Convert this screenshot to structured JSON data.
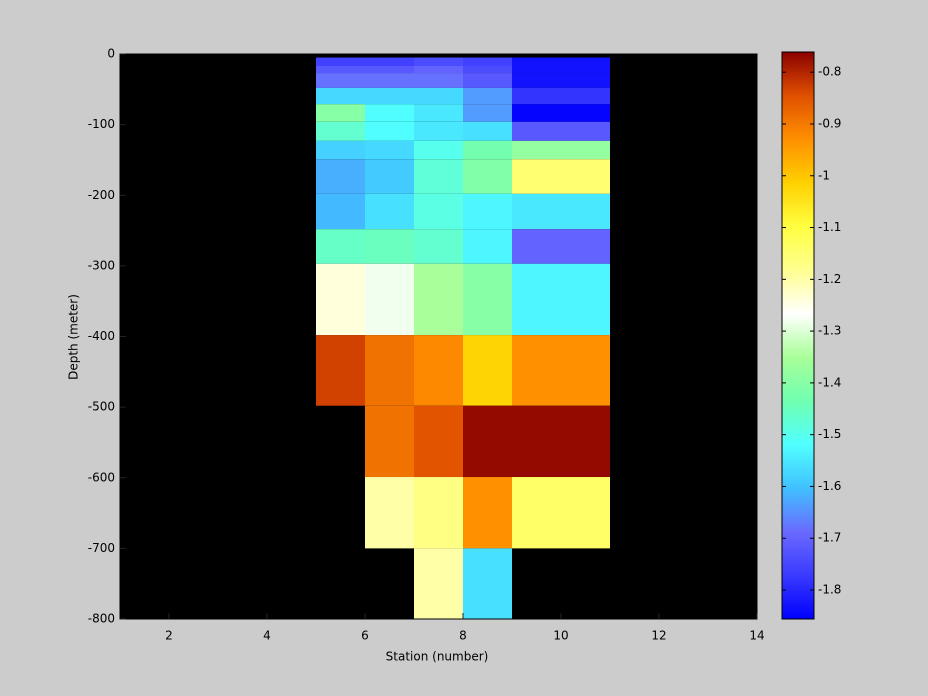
{
  "chart_data": {
    "type": "heatmap",
    "xlabel": "Station (number)",
    "ylabel": "Depth (meter)",
    "x_edges": [
      5,
      6,
      7,
      8,
      9,
      11
    ],
    "y_edges": [
      -5,
      -17,
      -27,
      -48,
      -71,
      -96,
      -123,
      -149,
      -198,
      -248,
      -297,
      -398,
      -498,
      -599,
      -700,
      -800
    ],
    "values": [
      [
        -1.76,
        -1.76,
        -1.74,
        -1.76,
        -1.83
      ],
      [
        -1.72,
        -1.72,
        -1.7,
        -1.74,
        -1.83
      ],
      [
        -1.68,
        -1.68,
        -1.68,
        -1.72,
        -1.83
      ],
      [
        -1.57,
        -1.57,
        -1.57,
        -1.64,
        -1.78
      ],
      [
        -1.4,
        -1.52,
        -1.55,
        -1.64,
        -1.85
      ],
      [
        -1.47,
        -1.52,
        -1.55,
        -1.56,
        -1.72
      ],
      [
        -1.58,
        -1.57,
        -1.5,
        -1.43,
        -1.38
      ],
      [
        -1.62,
        -1.59,
        -1.48,
        -1.41,
        -1.15
      ],
      [
        -1.61,
        -1.56,
        -1.49,
        -1.53,
        -1.55
      ],
      [
        -1.46,
        -1.45,
        -1.47,
        -1.53,
        -1.7
      ],
      [
        -1.24,
        -1.28,
        -1.35,
        -1.4,
        -1.53
      ],
      [
        -0.83,
        -0.89,
        -0.92,
        -1.02,
        -0.93
      ],
      [
        null,
        -0.89,
        -0.85,
        -0.77,
        -0.77
      ],
      [
        null,
        -1.2,
        -1.17,
        -0.93,
        -1.14
      ],
      [
        null,
        null,
        -1.2,
        -1.56,
        null
      ]
    ],
    "xlim": [
      1,
      14
    ],
    "xticks": [
      2,
      4,
      6,
      8,
      10,
      12,
      14
    ],
    "ylim": [
      -800,
      0
    ],
    "yticks": [
      -800,
      -700,
      -600,
      -500,
      -400,
      -300,
      -200,
      -100,
      0
    ],
    "clim": [
      -1.856,
      -0.761
    ],
    "cticks": [
      -1.8,
      -1.7,
      -1.6,
      -1.5,
      -1.4,
      -1.3,
      -1.2,
      -1.1,
      -1,
      -0.9,
      -0.8
    ],
    "colormap": [
      "#0000ff",
      "#3a3aff",
      "#6a6aff",
      "#40c0ff",
      "#50ffff",
      "#70ffb0",
      "#a8ff98",
      "#ffffff",
      "#ffff90",
      "#ffff40",
      "#ffd000",
      "#ff9000",
      "#e05000",
      "#8b0000"
    ],
    "background": "#000000"
  }
}
